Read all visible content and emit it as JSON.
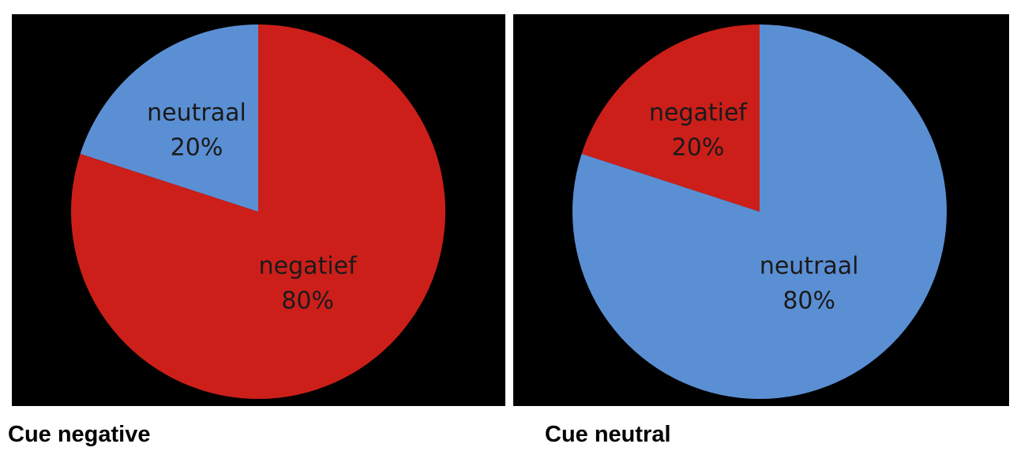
{
  "colors": {
    "negatief": "#cc1f1a",
    "neutraal": "#5b8fd4",
    "background": "#000000",
    "label": "#1a1a1a"
  },
  "chart_data": [
    {
      "type": "pie",
      "caption": "Cue negative",
      "slices": [
        {
          "name": "neutraal",
          "value": 20,
          "label": "20%",
          "color": "#5b8fd4"
        },
        {
          "name": "negatief",
          "value": 80,
          "label": "80%",
          "color": "#cc1f1a"
        }
      ]
    },
    {
      "type": "pie",
      "caption": "Cue neutral",
      "slices": [
        {
          "name": "negatief",
          "value": 20,
          "label": "20%",
          "color": "#cc1f1a"
        },
        {
          "name": "neutraal",
          "value": 80,
          "label": "80%",
          "color": "#5b8fd4"
        }
      ]
    }
  ]
}
